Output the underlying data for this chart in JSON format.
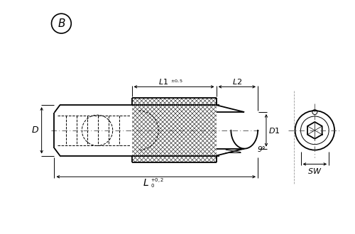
{
  "bg_color": "#ffffff",
  "line_color": "#000000",
  "fig_width": 5.0,
  "fig_height": 3.3,
  "dpi": 100,
  "label_B": "B",
  "label_L1": "L1",
  "label_L1_tol": "±0,5",
  "label_L2": "L2",
  "label_D": "D",
  "label_D1": "D1",
  "label_9deg": "9°",
  "label_SW": "SW",
  "label_L": "L",
  "label_L_sup": "+0,2",
  "label_L_sub": "0"
}
